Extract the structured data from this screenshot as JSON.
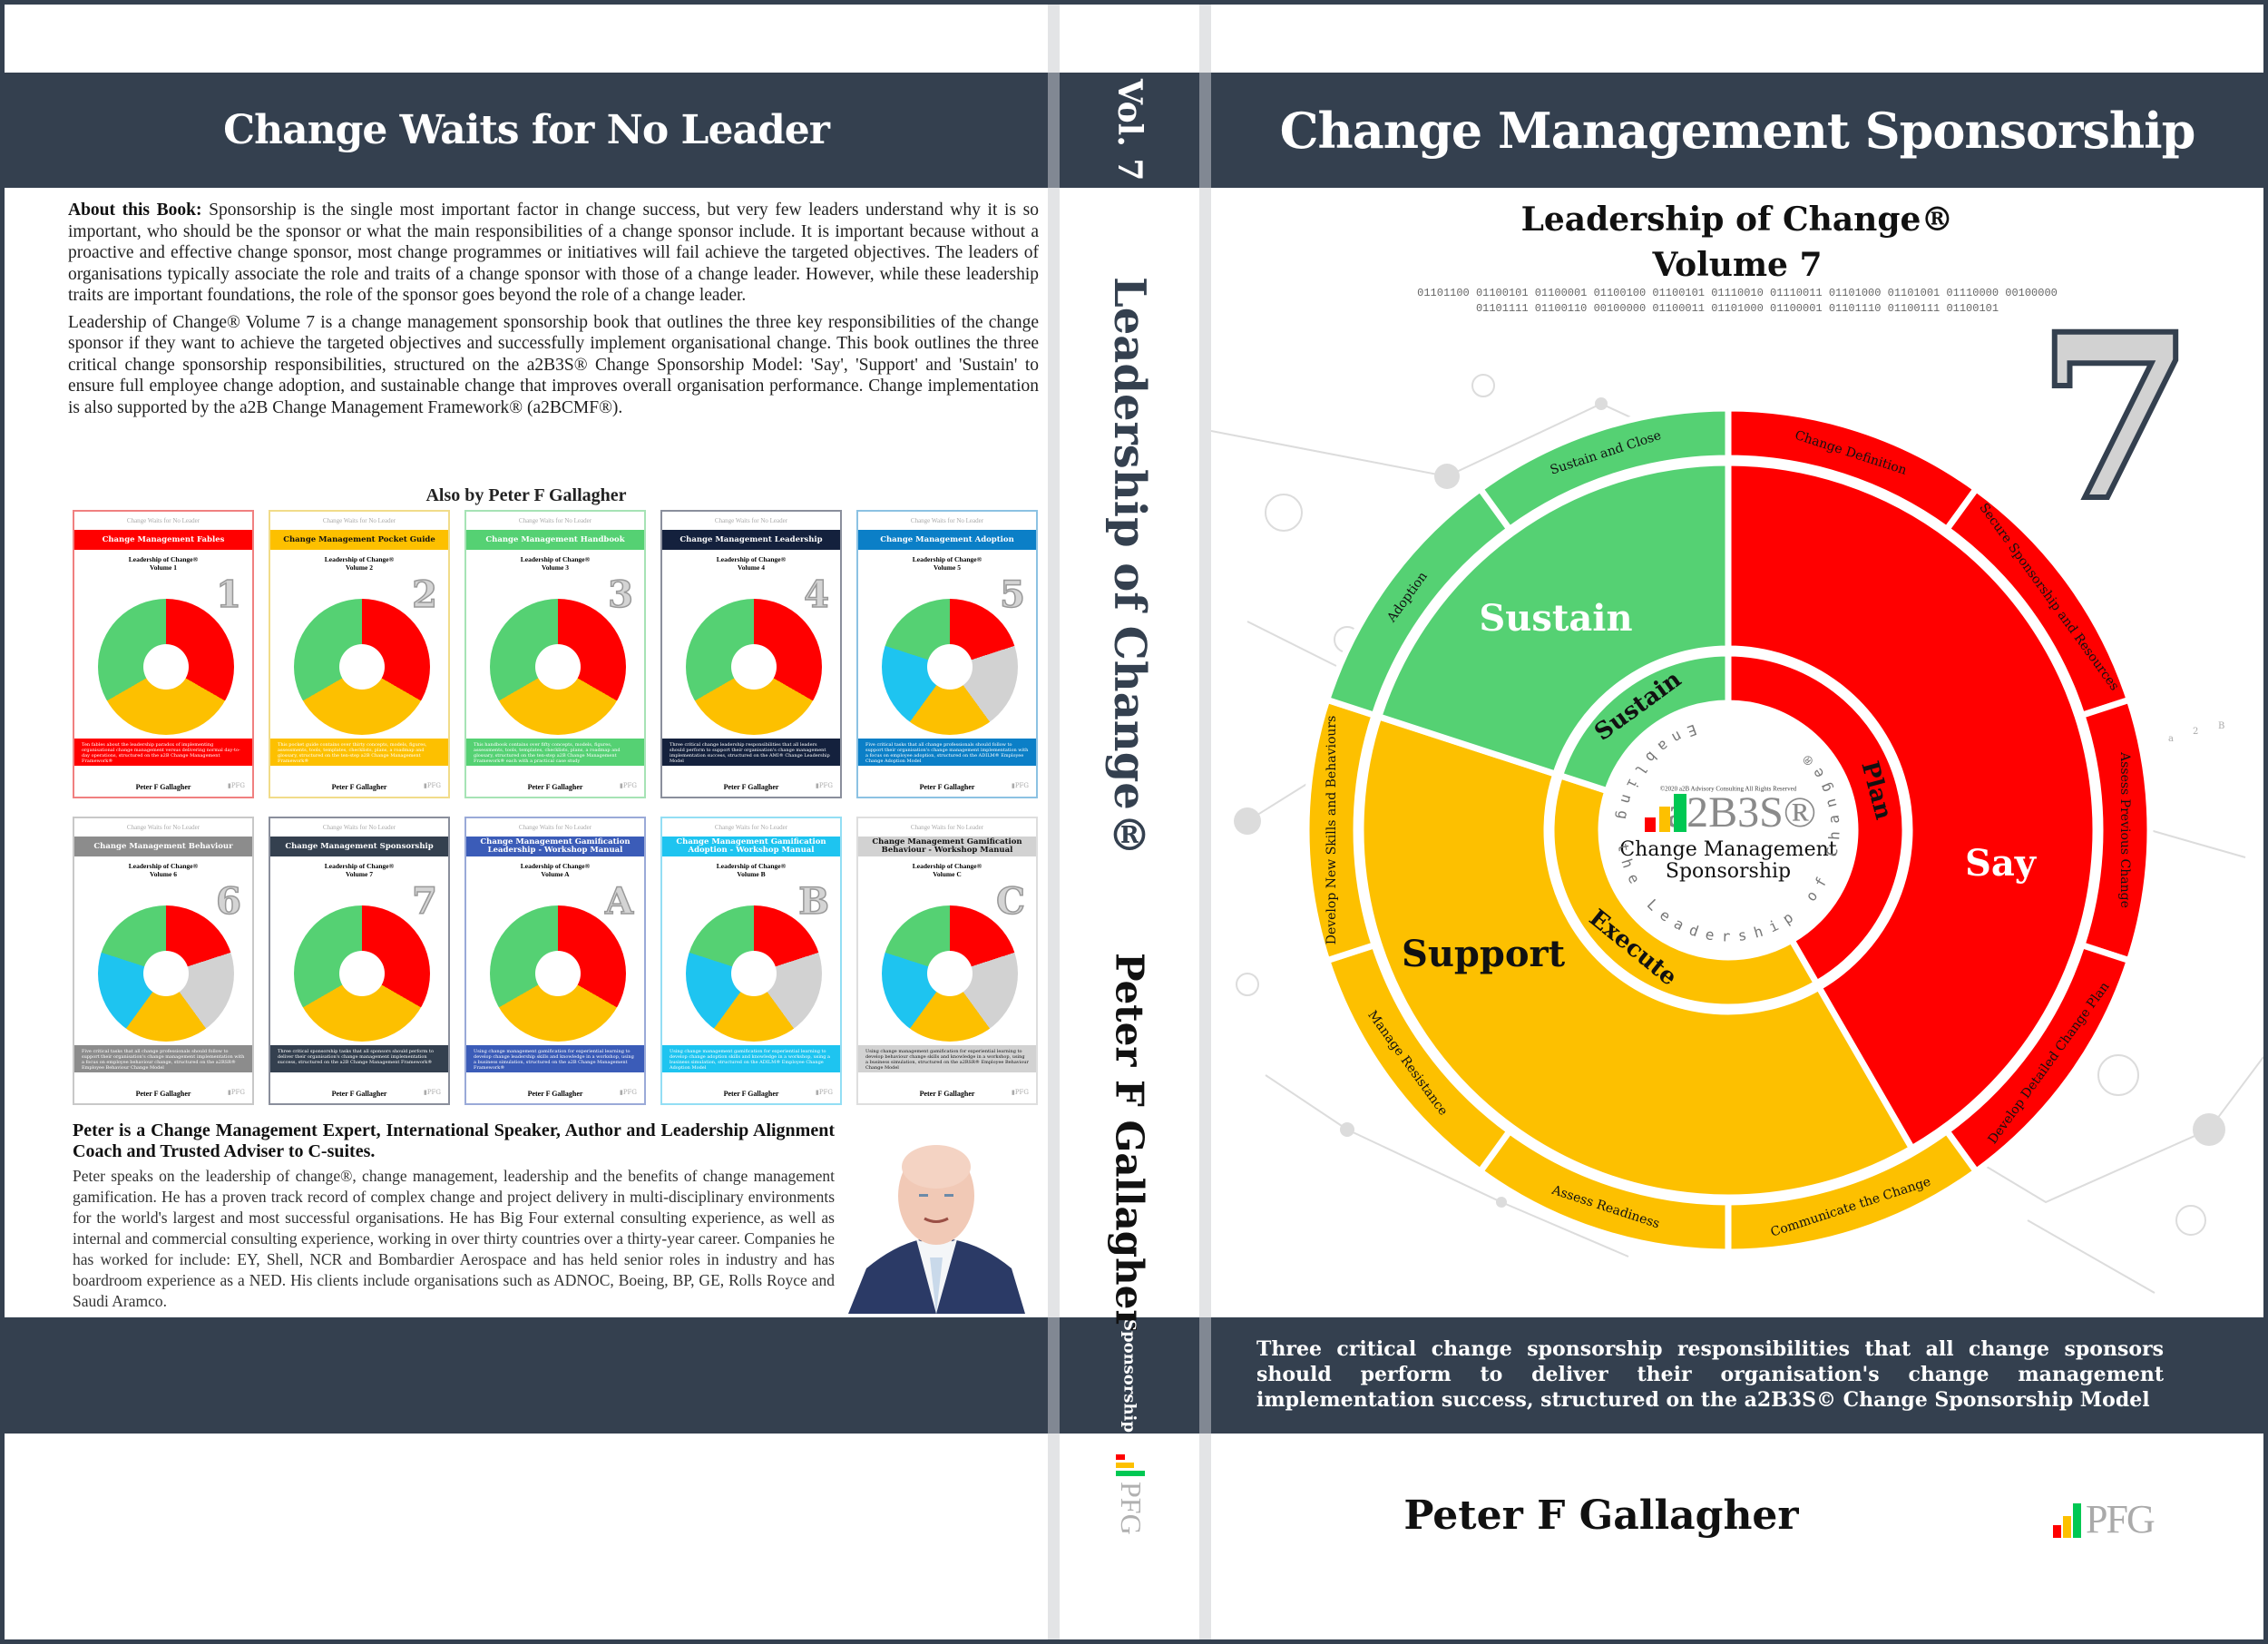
{
  "colors": {
    "navy": "#34404f",
    "red": "#ff0000",
    "amber": "#fdc000",
    "green": "#55d173",
    "gray": "#d2d2d2"
  },
  "back_cover": {
    "header_title": "Change Waits for No Leader",
    "about_label": "About this Book:",
    "about_p1": "Sponsorship is the single most important factor in change success, but very few leaders understand why it is so important, who should be the sponsor or what the main responsibilities of a change sponsor include. It is important because without a proactive and effective change sponsor, most change programmes or initiatives will fail achieve the targeted objectives. The leaders of organisations typically associate the role and traits of a change sponsor with those of a change leader. However, while these leadership traits are important foundations, the role of the sponsor goes beyond the role of a change leader.",
    "about_p2": "Leadership of Change® Volume 7 is a change management sponsorship book that outlines the three key responsibilities of the change sponsor if they want to achieve the targeted objectives and successfully implement organisational change. This book outlines the three critical change sponsorship responsibilities, structured on the a2B3S® Change Sponsorship Model: 'Say', 'Support' and 'Sustain' to ensure full employee change adoption, and sustainable change that improves overall organisation performance. Change implementation is also supported by the a2B Change Management Framework® (a2BCMF®).",
    "also_by_title": "Also by Peter F Gallagher",
    "books": [
      {
        "series_top": "Change Waits for No Leader",
        "title": "Change Management Fables",
        "series": "Leadership of Change®",
        "volume": "Volume 1",
        "number": "1",
        "color": "#ff0000",
        "border": "#f08080",
        "blurb": "Ten fables about the leadership paradox of implementing organisational change management versus delivering normal day-to-day operations, structured on the a2B Change Management Framework®",
        "author": "Peter F Gallagher",
        "wheel": [
          "#ff0000",
          "#fdc000",
          "#55d173"
        ]
      },
      {
        "series_top": "Change Waits for No Leader",
        "title": "Change Management Pocket Guide",
        "series": "Leadership of Change®",
        "volume": "Volume 2",
        "number": "2",
        "color": "#fdc000",
        "border": "#f1dc8a",
        "blurb": "This pocket guide contains over thirty concepts, models, figures, assessments, tools, templates, checklists, plans, a roadmap and glossary, structured on the ten-step a2B Change Management Framework®",
        "author": "Peter F Gallagher",
        "wheel": [
          "#ff0000",
          "#fdc000",
          "#55d173"
        ]
      },
      {
        "series_top": "Change Waits for No Leader",
        "title": "Change Management Handbook",
        "series": "Leadership of Change®",
        "volume": "Volume 3",
        "number": "3",
        "color": "#55d173",
        "border": "#a6e3b5",
        "blurb": "This handbook contains over fifty concepts, models, figures, assessments, tools, templates, checklists, plans, a roadmap and glossary, structured on the ten-step a2B Change Management Framework® each with a practical case study",
        "author": "Peter F Gallagher",
        "wheel": [
          "#ff0000",
          "#fdc000",
          "#55d173"
        ]
      },
      {
        "series_top": "Change Waits for No Leader",
        "title": "Change Management Leadership",
        "series": "Leadership of Change®",
        "volume": "Volume 4",
        "number": "4",
        "color": "#14213d",
        "border": "#8a8f9c",
        "blurb": "Three critical change leadership responsibilities that all leaders should perform to support their organisation's change management implementation success, structured on the AMI® Change Leadership Model",
        "author": "Peter F Gallagher",
        "wheel": [
          "#ff0000",
          "#fdc000",
          "#55d173"
        ]
      },
      {
        "series_top": "Change Waits for No Leader",
        "title": "Change Management Adoption",
        "series": "Leadership of Change®",
        "volume": "Volume 5",
        "number": "5",
        "color": "#0b7fc7",
        "border": "#8cc2e3",
        "blurb": "Five critical tasks that all change professionals should follow to support their organisation's change management implementation with a focus on employee adoption, structured on the ADILM® Employee Change Adoption Model",
        "author": "Peter F Gallagher",
        "wheel": [
          "#ff0000",
          "#d2d2d2",
          "#fdc000",
          "#1ec4f0",
          "#55d173"
        ]
      },
      {
        "series_top": "Change Waits for No Leader",
        "title": "Change Management Behaviour",
        "series": "Leadership of Change®",
        "volume": "Volume 6",
        "number": "6",
        "color": "#8c8c8c",
        "border": "#c8c8c8",
        "blurb": "Five critical tasks that all change professionals should follow to support their organisation's change management implementation with a focus on employee behaviour change, structured on the a2RSR® Employee Behaviour Change Model",
        "author": "Peter F Gallagher",
        "wheel": [
          "#ff0000",
          "#d2d2d2",
          "#fdc000",
          "#1ec4f0",
          "#55d173"
        ]
      },
      {
        "series_top": "Change Waits for No Leader",
        "title": "Change Management Sponsorship",
        "series": "Leadership of Change®",
        "volume": "Volume 7",
        "number": "7",
        "color": "#34404f",
        "border": "#8a8f9c",
        "blurb": "Three critical sponsorship tasks that all sponsors should perform to deliver their organisation's change management implementation success, structured on the a2B Change Management Framework®",
        "author": "Peter F Gallagher",
        "wheel": [
          "#ff0000",
          "#fdc000",
          "#55d173"
        ]
      },
      {
        "series_top": "Change Waits for No Leader",
        "title": "Change Management Gamification Leadership - Workshop Manual",
        "series": "Leadership of Change®",
        "volume": "Volume A",
        "number": "A",
        "color": "#3b5cb8",
        "border": "#9aaad8",
        "blurb": "Using change management gamification for experiential learning to develop change leadership skills and knowledge in a workshop, using a business simulation, structured on the a2B Change Management Framework®",
        "author": "Peter F Gallagher",
        "wheel": [
          "#ff0000",
          "#fdc000",
          "#55d173"
        ]
      },
      {
        "series_top": "Change Waits for No Leader",
        "title": "Change Management Gamification Adoption - Workshop Manual",
        "series": "Leadership of Change®",
        "volume": "Volume B",
        "number": "B",
        "color": "#1ec4f0",
        "border": "#93def4",
        "blurb": "Using change management gamification for experiential learning to develop change adoption skills and knowledge in a workshop, using a business simulation, structured on the ADILM® Employee Change Adoption Model",
        "author": "Peter F Gallagher",
        "wheel": [
          "#ff0000",
          "#d2d2d2",
          "#fdc000",
          "#1ec4f0",
          "#55d173"
        ]
      },
      {
        "series_top": "Change Waits for No Leader",
        "title": "Change Management Gamification Behaviour - Workshop Manual",
        "series": "Leadership of Change®",
        "volume": "Volume C",
        "number": "C",
        "color": "#d2d2d2",
        "border": "#dedede",
        "blurb": "Using change management gamification for experiential learning to develop behaviour change skills and knowledge in a workshop, using a business simulation, structured on the a2RSR® Employee Behaviour Change Model",
        "author": "Peter F Gallagher",
        "wheel": [
          "#ff0000",
          "#d2d2d2",
          "#fdc000",
          "#1ec4f0",
          "#55d173"
        ]
      }
    ],
    "bio_heading": "Peter is a Change Management Expert, International Speaker, Author and Leadership Alignment Coach and Trusted Adviser to C-suites.",
    "bio_body": "Peter speaks on the leadership of change®, change management, leadership and the benefits of change management gamification. He has a proven track record of complex change and project delivery in multi-disciplinary environments for the world's largest and most successful organisations. He has Big Four external consulting experience, as well as internal and commercial consulting experience, working in over thirty countries over a thirty-year career. Companies he has worked for include: EY, Shell, NCR and Bombardier Aerospace and has held senior roles in industry and has boardroom experience as a NED. His clients include organisations such as ADNOC, Boeing, BP, GE, Rolls Royce and Saudi Aramco."
  },
  "spine": {
    "volume": "Vol. 7",
    "series_title": "Leadership of Change®",
    "author": "Peter F Gallagher",
    "subtitle": "Sponsorship",
    "publisher_logo": "PFG"
  },
  "front_cover": {
    "header_title": "Change Management Sponsorship",
    "series": "Leadership of Change®",
    "volume": "Volume 7",
    "binary_line1": "01101100 01100101 01100001 01100100 01100101 01110010 01110011 01101000 01101001 01110000 00100000",
    "binary_line2": "01101111 01100110 00100000 01100011 01101000 01100001 01101110 01100111 01100101",
    "big_number": "7",
    "tagline_l1": "Three critical change sponsorship responsibilities that all change sponsors",
    "tagline_l2": "should perform to deliver their organisation's change management",
    "tagline_l3": "implementation success, structured on the a2B3S© Change Sponsorship Model",
    "author": "Peter F Gallagher",
    "publisher_logo": "PFG",
    "decor_marks": [
      "a",
      "2",
      "B"
    ]
  },
  "chart_data": {
    "type": "sunburst",
    "title": "a2B3S® Change Management Sponsorship",
    "center": {
      "copyright": "©2020 a2B Advisory Consulting All Rights Reserved",
      "logo": "a2B3S®",
      "label_l1": "Change Management",
      "label_l2": "Sponsorship",
      "ring_text": "Enabling the Leadership of Change®"
    },
    "inner_ring": [
      {
        "label": "Plan",
        "color": "#ff0000",
        "start_deg": 0,
        "end_deg": 150
      },
      {
        "label": "Execute",
        "color": "#fdc000",
        "start_deg": 150,
        "end_deg": 288
      },
      {
        "label": "Sustain",
        "color": "#55d173",
        "start_deg": 288,
        "end_deg": 360
      }
    ],
    "middle_ring": [
      {
        "label": "Say",
        "color": "#ff0000",
        "start_deg": 0,
        "end_deg": 150
      },
      {
        "label": "Support",
        "color": "#fdc000",
        "start_deg": 150,
        "end_deg": 288
      },
      {
        "label": "Sustain",
        "color": "#55d173",
        "start_deg": 288,
        "end_deg": 360
      }
    ],
    "outer_ring": [
      {
        "step": 1,
        "label": "Change Definition",
        "color": "#ff0000",
        "start_deg": 0,
        "end_deg": 36
      },
      {
        "step": 2,
        "label": "Secure Sponsorship and Resources",
        "color": "#ff0000",
        "start_deg": 36,
        "end_deg": 72
      },
      {
        "step": 3,
        "label": "Assess Previous Change",
        "color": "#ff0000",
        "start_deg": 72,
        "end_deg": 108
      },
      {
        "step": 4,
        "label": "Develop Detailed Change Plan",
        "color": "#ff0000",
        "start_deg": 108,
        "end_deg": 144
      },
      {
        "step": 5,
        "label": "Communicate the Change",
        "color": "#fdc000",
        "start_deg": 144,
        "end_deg": 180
      },
      {
        "step": 6,
        "label": "Assess Readiness",
        "color": "#fdc000",
        "start_deg": 180,
        "end_deg": 216
      },
      {
        "step": 7,
        "label": "Manage Resistance",
        "color": "#fdc000",
        "start_deg": 216,
        "end_deg": 252
      },
      {
        "step": 8,
        "label": "Develop New Skills and Behaviours",
        "color": "#fdc000",
        "start_deg": 252,
        "end_deg": 288
      },
      {
        "step": 9,
        "label": "Adoption",
        "color": "#55d173",
        "start_deg": 288,
        "end_deg": 324
      },
      {
        "step": 10,
        "label": "Sustain and Close",
        "color": "#55d173",
        "start_deg": 324,
        "end_deg": 360
      }
    ]
  }
}
